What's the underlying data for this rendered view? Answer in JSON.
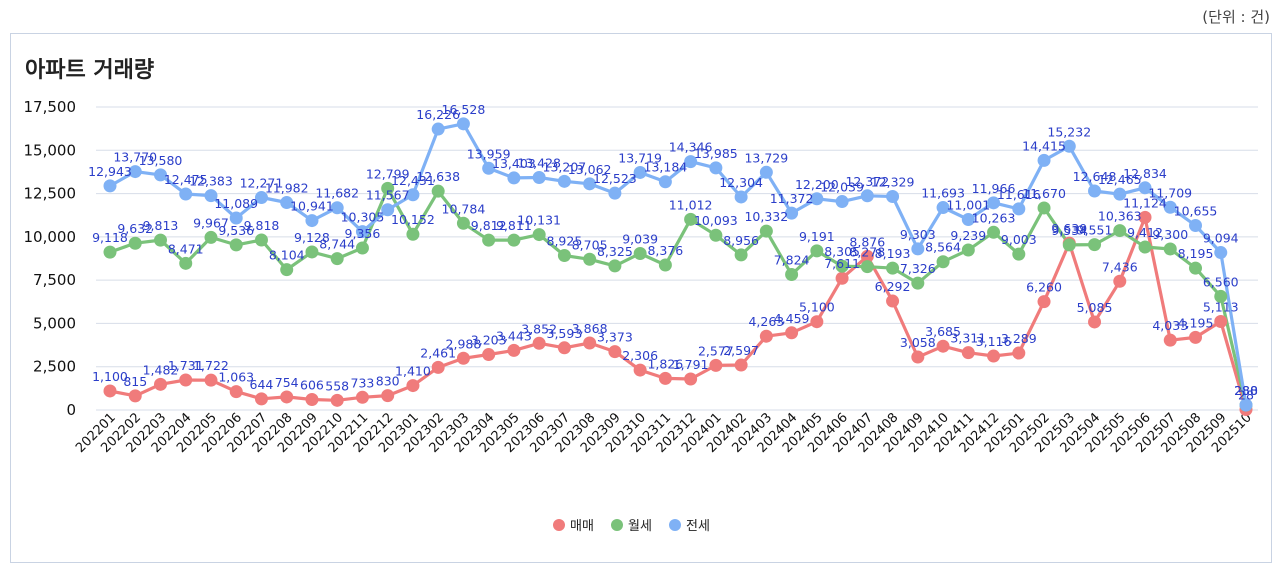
{
  "unit_label": "(단위 : 건)",
  "chart_data": {
    "type": "line",
    "title": "아파트 거래량",
    "xlabel": "",
    "ylabel": "",
    "ylim": [
      0,
      17500
    ],
    "yticks": [
      0,
      2500,
      5000,
      7500,
      10000,
      12500,
      15000,
      17500
    ],
    "ytick_labels": [
      "0",
      "2,500",
      "5,000",
      "7,500",
      "10,000",
      "12,500",
      "15,000",
      "17,500"
    ],
    "grid": true,
    "legend_position": "bottom",
    "categories": [
      "202201",
      "202202",
      "202203",
      "202204",
      "202205",
      "202206",
      "202207",
      "202208",
      "202209",
      "202210",
      "202211",
      "202212",
      "202301",
      "202302",
      "202303",
      "202304",
      "202305",
      "202306",
      "202307",
      "202308",
      "202309",
      "202310",
      "202311",
      "202312",
      "202401",
      "202402",
      "202403",
      "202404",
      "202405",
      "202406",
      "202407",
      "202408",
      "202409",
      "202410",
      "202411",
      "202412",
      "202501",
      "202502",
      "202503",
      "202504",
      "202505",
      "202506",
      "202507",
      "202508",
      "202509",
      "202510"
    ],
    "series": [
      {
        "name": "매매",
        "color": "#f07b7b",
        "values": [
          1100,
          815,
          1482,
          1731,
          1722,
          1063,
          644,
          754,
          606,
          558,
          733,
          830,
          1410,
          2461,
          2988,
          3203,
          3443,
          3852,
          3593,
          3868,
          3373,
          2306,
          1826,
          1791,
          2577,
          2597,
          4263,
          4459,
          5100,
          7611,
          8876,
          6292,
          3058,
          3685,
          3311,
          3116,
          3289,
          6260,
          9639,
          5085,
          7436,
          11124,
          4033,
          4195,
          5113,
          28
        ],
        "labels": [
          "1,100",
          "815",
          "1,482",
          "1,731",
          "1,722",
          "1,063",
          "644",
          "754",
          "606",
          "558",
          "733",
          "830",
          "1,410",
          "2,461",
          "2,988",
          "3,203",
          "3,443",
          "3,852",
          "3,593",
          "3,868",
          "3,373",
          "2,306",
          "1,826",
          "1,791",
          "2,577",
          "2,597",
          "4,263",
          "4,459",
          "5,100",
          "7,611",
          "8,876",
          "6,292",
          "3,058",
          "3,685",
          "3,311",
          "3,116",
          "3,289",
          "6,260",
          "9,639",
          "5,085",
          "7,436",
          "11,124",
          "4,033",
          "4,195",
          "5,113",
          "28"
        ]
      },
      {
        "name": "월세",
        "color": "#7ac27a",
        "values": [
          9118,
          9632,
          9813,
          8471,
          9967,
          9536,
          9818,
          8104,
          9128,
          8744,
          9356,
          12799,
          10152,
          12638,
          10784,
          9812,
          9811,
          10131,
          8925,
          8705,
          8325,
          9039,
          8376,
          11012,
          10093,
          8956,
          10332,
          7824,
          9191,
          8305,
          8278,
          8193,
          7326,
          8564,
          9239,
          10263,
          9003,
          11670,
          9534,
          9551,
          10363,
          9412,
          9300,
          8195,
          6560,
          280
        ],
        "labels": [
          "9,118",
          "9,632",
          "9,813",
          "8,471",
          "9,967",
          "9,536",
          "9,818",
          "8,104",
          "9,128",
          "8,744",
          "9,356",
          "12,799",
          "10,152",
          "12,638",
          "10,784",
          "9,812",
          "9,811",
          "10,131",
          "8,925",
          "8,705",
          "8,325",
          "9,039",
          "8,376",
          "11,012",
          "10,093",
          "8,956",
          "10,332",
          "7,824",
          "9,191",
          "8,305",
          "8,278",
          "8,193",
          "7,326",
          "8,564",
          "9,239",
          "10,263",
          "9,003",
          "11,670",
          "9,534",
          "9,551",
          "10,363",
          "9,412",
          "9,300",
          "8,195",
          "6,560",
          "280"
        ]
      },
      {
        "name": "전세",
        "color": "#7fb1f5",
        "values": [
          12943,
          13770,
          13580,
          12475,
          12383,
          11089,
          12271,
          11982,
          10941,
          11682,
          10305,
          11567,
          12431,
          16226,
          16528,
          13959,
          13403,
          13428,
          13207,
          13062,
          12523,
          13719,
          13184,
          14346,
          13985,
          12304,
          13729,
          11372,
          12200,
          12039,
          12372,
          12329,
          9303,
          11693,
          11001,
          11966,
          11616,
          14415,
          15232,
          12648,
          12465,
          12834,
          11709,
          10655,
          9094,
          288
        ],
        "labels": [
          "12,943",
          "13,770",
          "13,580",
          "12,475",
          "12,383",
          "11,089",
          "12,271",
          "11,982",
          "10,941",
          "11,682",
          "10,305",
          "11,567",
          "12,431",
          "16,226",
          "16,528",
          "13,959",
          "13,403",
          "13,428",
          "13,207",
          "13,062",
          "12,523",
          "13,719",
          "13,184",
          "14,346",
          "13,985",
          "12,304",
          "13,729",
          "11,372",
          "12,200",
          "12,039",
          "12,372",
          "12,329",
          "9,303",
          "11,693",
          "11,001",
          "11,966",
          "11,616",
          "14,415",
          "15,232",
          "12,648",
          "12,465",
          "12,834",
          "11,709",
          "10,655",
          "9,094",
          "288"
        ]
      }
    ]
  }
}
